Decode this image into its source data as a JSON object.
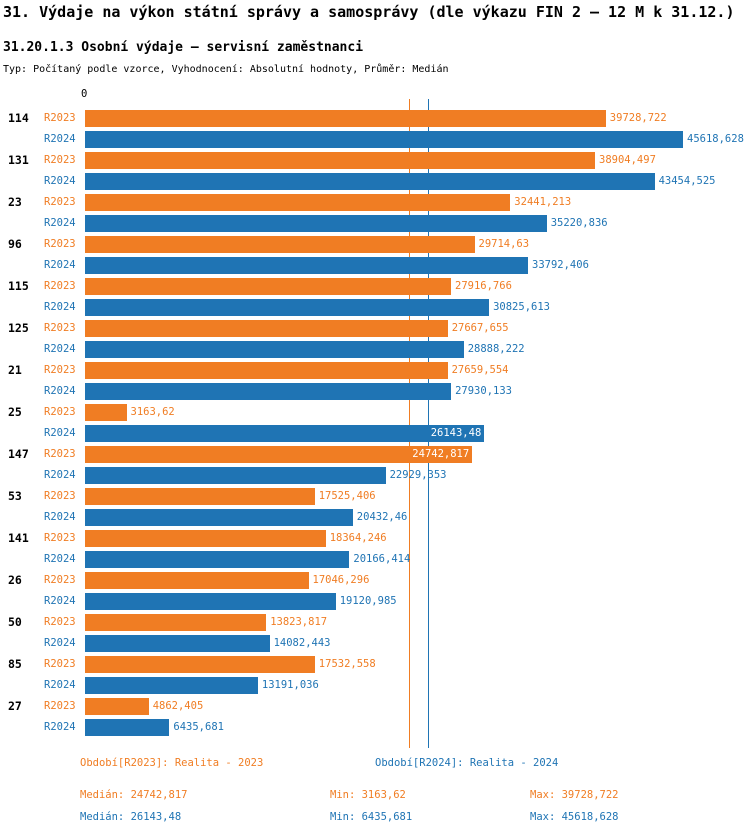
{
  "header": {
    "title": "31. Výdaje na výkon státní správy a samosprávy (dle výkazu FIN 2 – 12 M k 31.12.)",
    "subtitle": "31.20.1.3 Osobní výdaje – servisní zaměstnanci",
    "meta": "Typ: Počítaný podle vzorce, Vyhodnocení: Absolutní hodnoty, Průměr: Medián"
  },
  "colors": {
    "r2023": "#F07D23",
    "r2024": "#1F74B4"
  },
  "chart_data": {
    "type": "bar",
    "orientation": "horizontal",
    "axis_origin_label": "0",
    "xlim": [
      0,
      45618.628
    ],
    "grid": false,
    "series_labels": [
      "R2023",
      "R2024"
    ],
    "categories": [
      "114",
      "131",
      "23",
      "96",
      "115",
      "125",
      "21",
      "25",
      "147",
      "53",
      "141",
      "26",
      "50",
      "85",
      "27"
    ],
    "rows": [
      {
        "category": "114",
        "r2023": {
          "value": 39728.722,
          "label": "39728,722"
        },
        "r2024": {
          "value": 45618.628,
          "label": "45618,628"
        }
      },
      {
        "category": "131",
        "r2023": {
          "value": 38904.497,
          "label": "38904,497"
        },
        "r2024": {
          "value": 43454.525,
          "label": "43454,525"
        }
      },
      {
        "category": "23",
        "r2023": {
          "value": 32441.213,
          "label": "32441,213"
        },
        "r2024": {
          "value": 35220.836,
          "label": "35220,836"
        }
      },
      {
        "category": "96",
        "r2023": {
          "value": 29714.63,
          "label": "29714,63"
        },
        "r2024": {
          "value": 33792.406,
          "label": "33792,406"
        }
      },
      {
        "category": "115",
        "r2023": {
          "value": 27916.766,
          "label": "27916,766"
        },
        "r2024": {
          "value": 30825.613,
          "label": "30825,613"
        }
      },
      {
        "category": "125",
        "r2023": {
          "value": 27667.655,
          "label": "27667,655"
        },
        "r2024": {
          "value": 28888.222,
          "label": "28888,222"
        }
      },
      {
        "category": "21",
        "r2023": {
          "value": 27659.554,
          "label": "27659,554"
        },
        "r2024": {
          "value": 27930.133,
          "label": "27930,133"
        }
      },
      {
        "category": "25",
        "r2023": {
          "value": 3163.62,
          "label": "3163,62"
        },
        "r2024": {
          "value": 26143.48,
          "label": "26143,48",
          "highlight": true
        }
      },
      {
        "category": "147",
        "r2023": {
          "value": 24742.817,
          "label": "24742,817",
          "highlight": true
        },
        "r2024": {
          "value": 22929.353,
          "label": "22929,353"
        }
      },
      {
        "category": "53",
        "r2023": {
          "value": 17525.406,
          "label": "17525,406"
        },
        "r2024": {
          "value": 20432.46,
          "label": "20432,46"
        }
      },
      {
        "category": "141",
        "r2023": {
          "value": 18364.246,
          "label": "18364,246"
        },
        "r2024": {
          "value": 20166.414,
          "label": "20166,414"
        }
      },
      {
        "category": "26",
        "r2023": {
          "value": 17046.296,
          "label": "17046,296"
        },
        "r2024": {
          "value": 19120.985,
          "label": "19120,985"
        }
      },
      {
        "category": "50",
        "r2023": {
          "value": 13823.817,
          "label": "13823,817"
        },
        "r2024": {
          "value": 14082.443,
          "label": "14082,443"
        }
      },
      {
        "category": "85",
        "r2023": {
          "value": 17532.558,
          "label": "17532,558"
        },
        "r2024": {
          "value": 13191.036,
          "label": "13191,036"
        }
      },
      {
        "category": "27",
        "r2023": {
          "value": 4862.405,
          "label": "4862,405"
        },
        "r2024": {
          "value": 6435.681,
          "label": "6435,681"
        }
      }
    ],
    "median_lines": {
      "r2023": 24742.817,
      "r2024": 26143.48
    },
    "legend": {
      "r2023_label": "Období[R2023]: Realita - 2023",
      "r2024_label": "Období[R2024]: Realita - 2024"
    },
    "stats": {
      "r2023": {
        "median": "Medián: 24742,817",
        "min": "Min: 3163,62",
        "max": "Max: 39728,722"
      },
      "r2024": {
        "median": "Medián: 26143,48",
        "min": "Min: 6435,681",
        "max": "Max: 45618,628"
      }
    }
  }
}
